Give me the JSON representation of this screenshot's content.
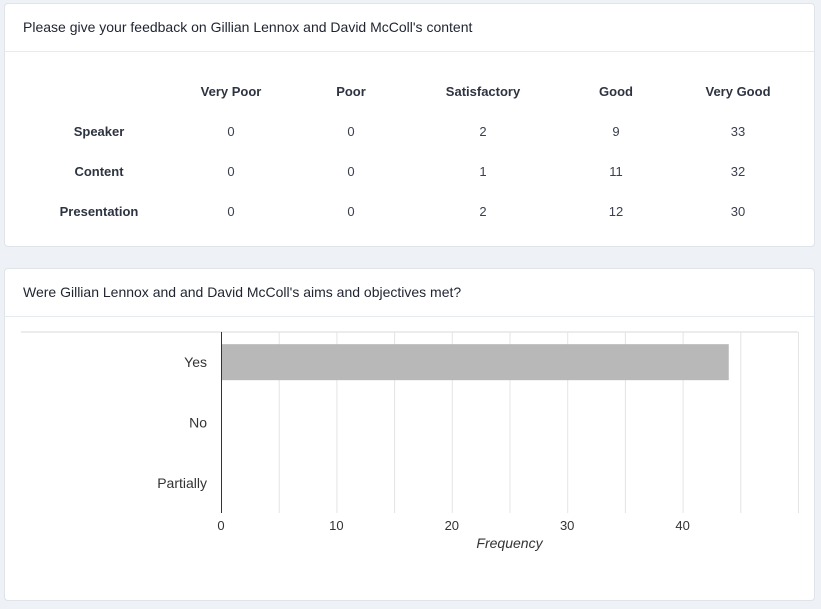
{
  "feedback_card": {
    "title": "Please give your feedback on Gillian Lennox and David McColl's content",
    "columns": [
      "Very Poor",
      "Poor",
      "Satisfactory",
      "Good",
      "Very Good"
    ],
    "rows": [
      {
        "label": "Speaker",
        "values": [
          "0",
          "0",
          "2",
          "9",
          "33"
        ]
      },
      {
        "label": "Content",
        "values": [
          "0",
          "0",
          "1",
          "11",
          "32"
        ]
      },
      {
        "label": "Presentation",
        "values": [
          "0",
          "0",
          "2",
          "12",
          "30"
        ]
      }
    ]
  },
  "aims_card": {
    "title": "Were Gillian Lennox and and David McColl's aims and objectives met?"
  },
  "chart_data": {
    "type": "bar",
    "orientation": "horizontal",
    "categories": [
      "Yes",
      "No",
      "Partially"
    ],
    "values": [
      44,
      0,
      0
    ],
    "xlabel": "Frequency",
    "xticks": [
      0,
      10,
      20,
      30,
      40
    ],
    "xlim": [
      0,
      50
    ],
    "grid": true,
    "bar_color": "#b8b8b8"
  }
}
